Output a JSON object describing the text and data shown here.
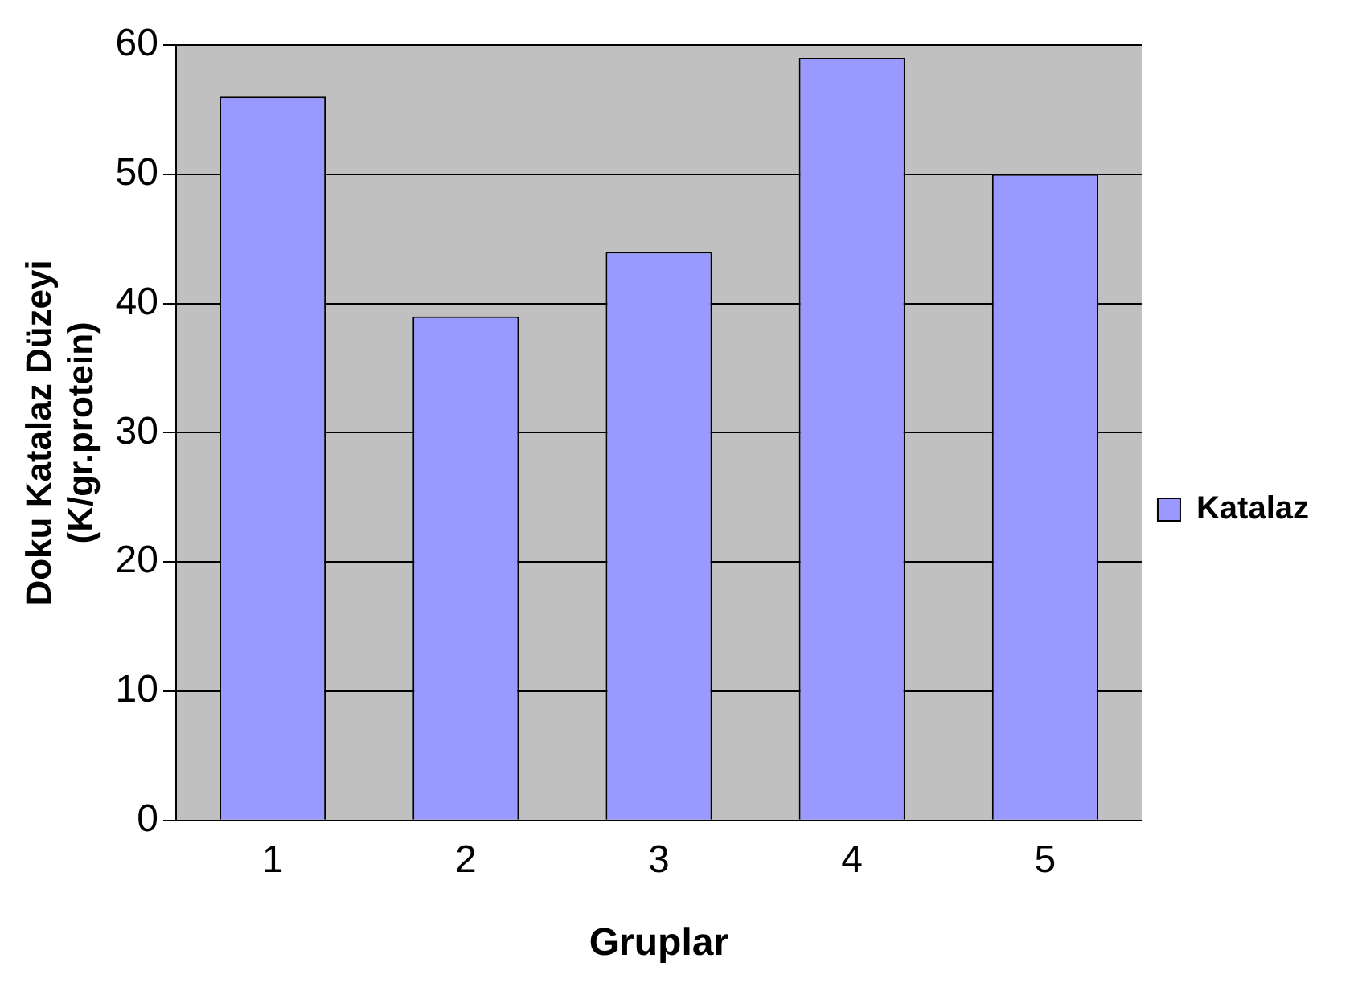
{
  "chart_data": {
    "type": "bar",
    "xlabel": "Gruplar",
    "ylabel": "Doku Katalaz Düzeyi\n(K/gr.protein)",
    "categories": [
      "1",
      "2",
      "3",
      "4",
      "5"
    ],
    "series": [
      {
        "name": "Katalaz",
        "color": "#9999ff",
        "values": [
          56,
          39,
          44,
          59,
          50
        ]
      }
    ],
    "ylim": [
      0,
      60
    ],
    "yticks": [
      0,
      10,
      20,
      30,
      40,
      50,
      60
    ],
    "grid": "y",
    "legend": "right"
  }
}
